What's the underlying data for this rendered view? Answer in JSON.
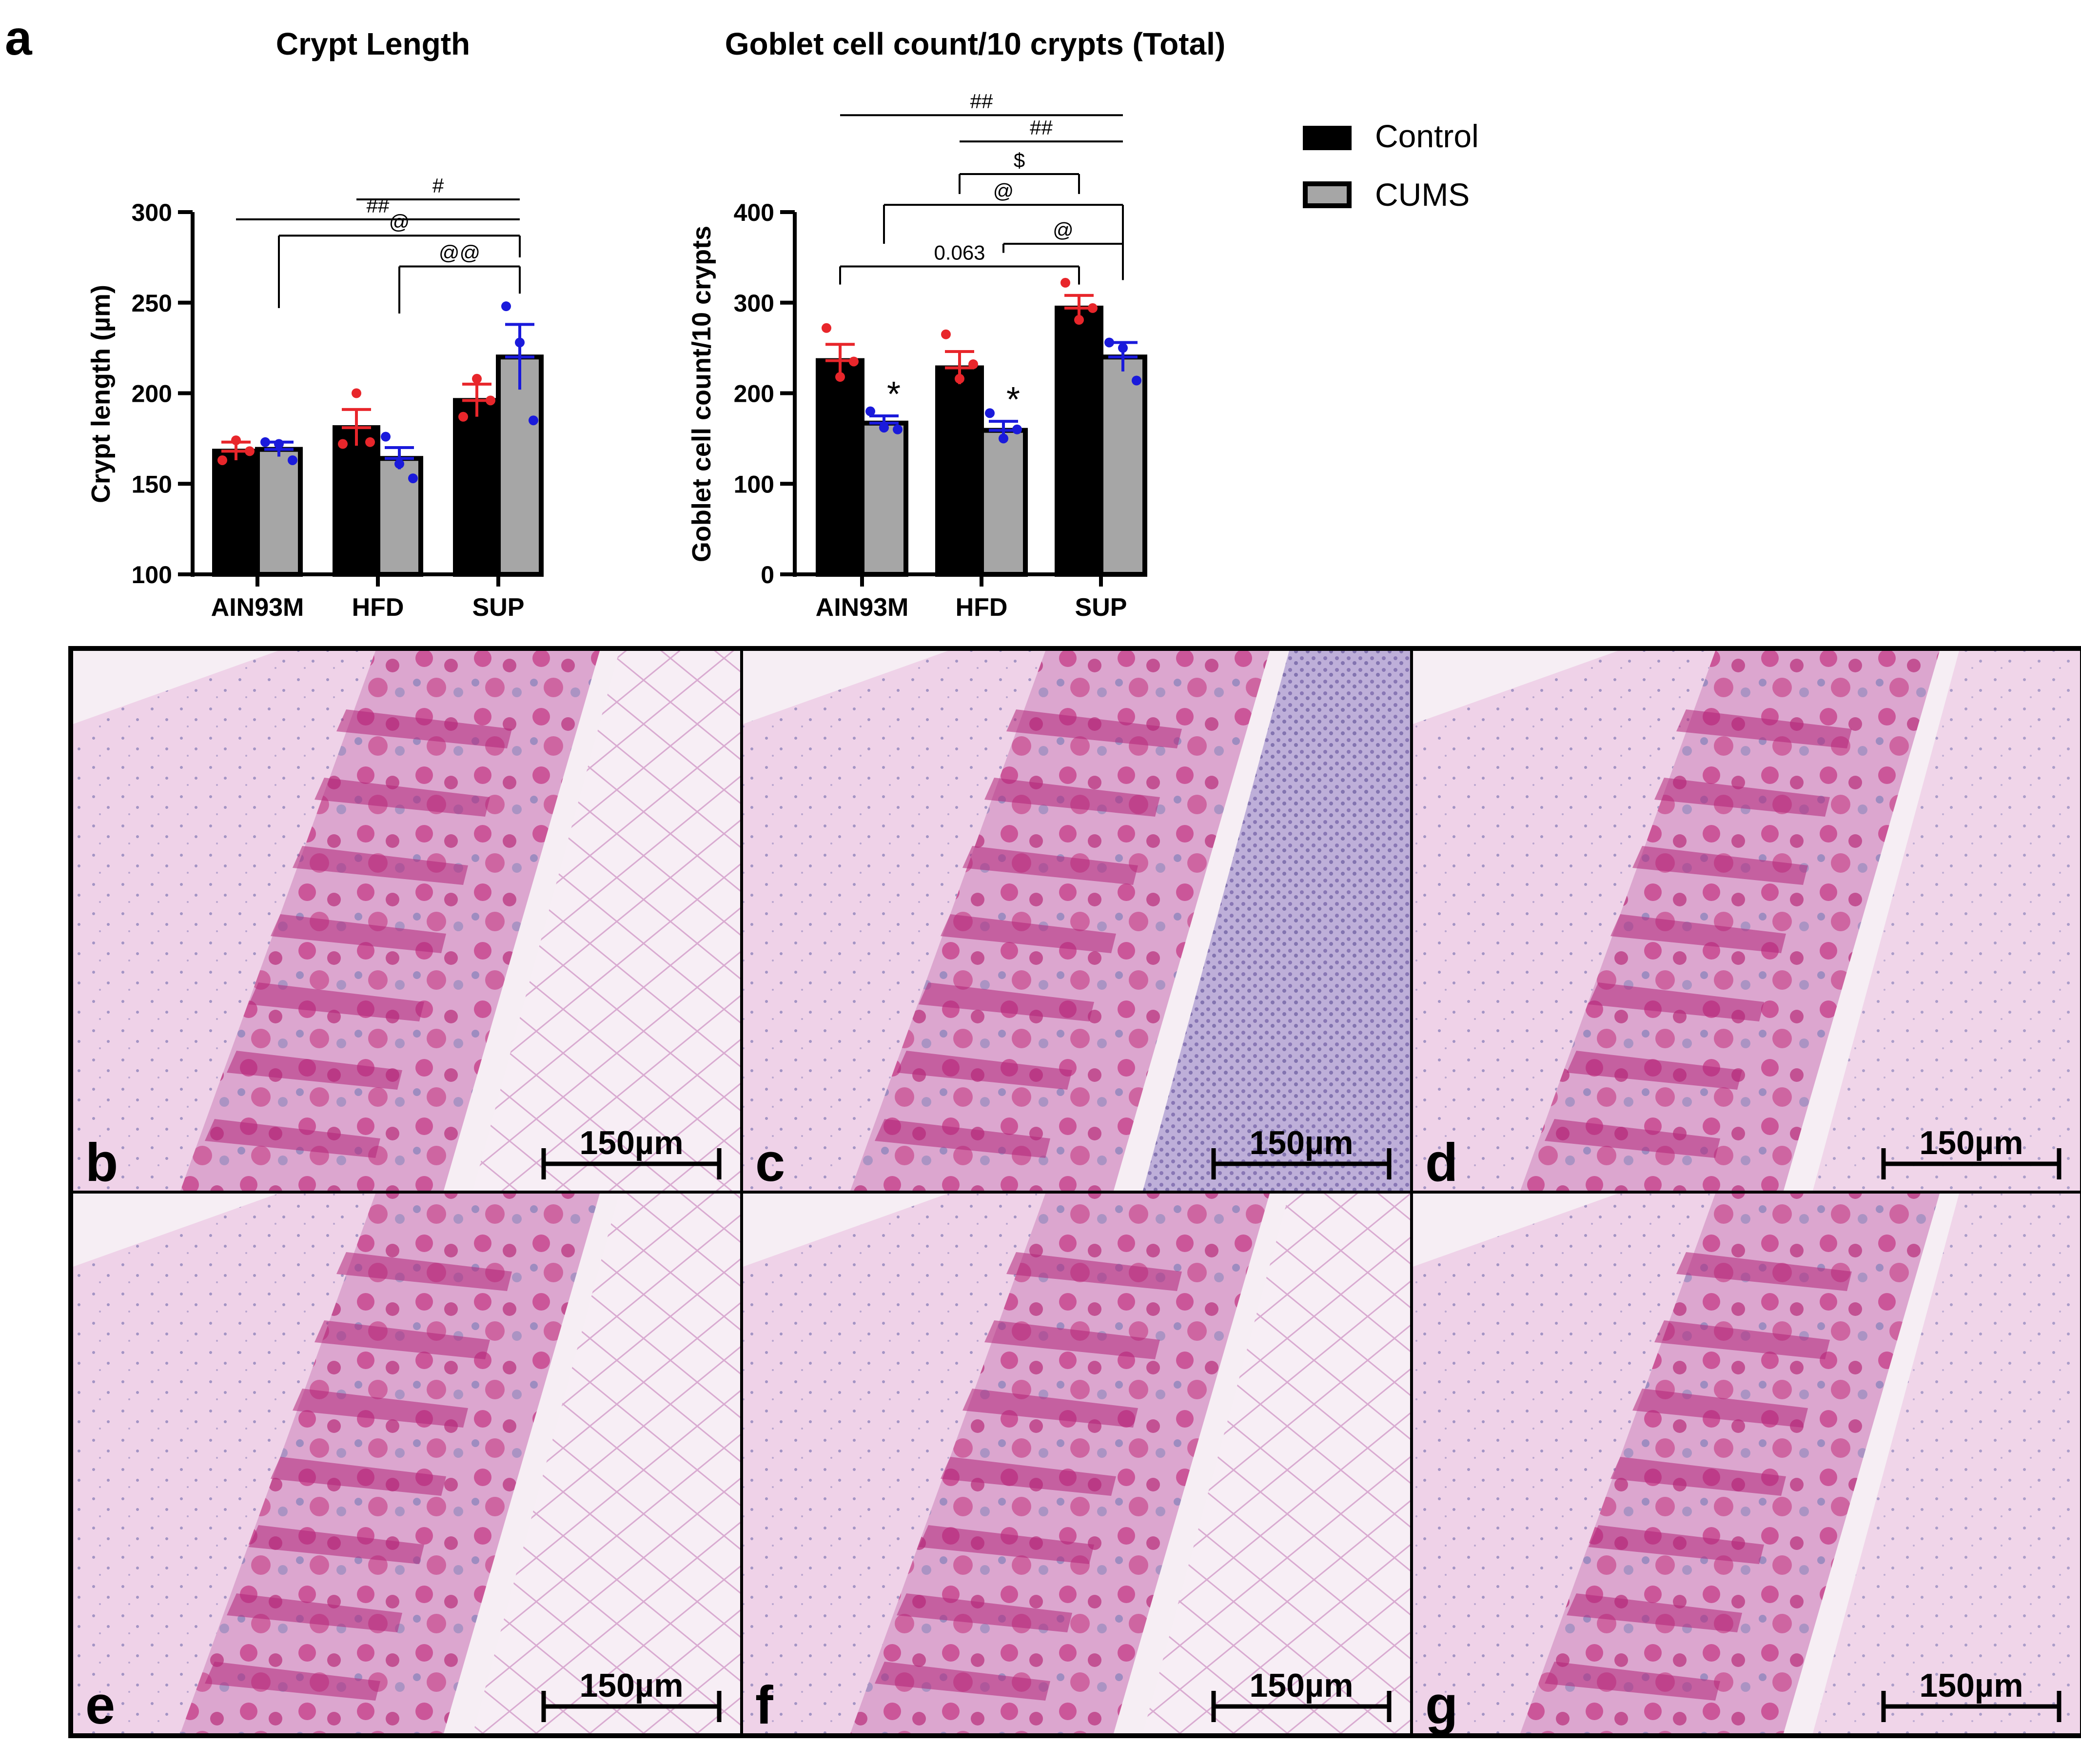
{
  "figure": {
    "panel_label_a": "a",
    "legend": {
      "placement": "top-right",
      "entries": [
        {
          "label": "Control",
          "color": "#000000"
        },
        {
          "label": "CUMS",
          "color": "#a6a6a6"
        }
      ]
    },
    "micrographs": [
      {
        "label": "b",
        "scale_bar": "150µm"
      },
      {
        "label": "c",
        "scale_bar": "150µm"
      },
      {
        "label": "d",
        "scale_bar": "150µm"
      },
      {
        "label": "e",
        "scale_bar": "150µm"
      },
      {
        "label": "f",
        "scale_bar": "150µm"
      },
      {
        "label": "g",
        "scale_bar": "150µm"
      }
    ]
  },
  "chart_data": [
    {
      "type": "bar",
      "title": "Crypt Length",
      "xlabel": "",
      "ylabel": "Crypt length (µm)",
      "categories": [
        "AIN93M",
        "HFD",
        "SUP"
      ],
      "ylim": [
        100,
        300
      ],
      "yticks": [
        100,
        150,
        200,
        250,
        300
      ],
      "grid": false,
      "series": [
        {
          "name": "Control",
          "color": "#000000",
          "values": [
            168,
            181,
            196
          ],
          "sem": [
            5,
            10,
            9
          ],
          "points": [
            [
              163,
              174,
              168
            ],
            [
              172,
              200,
              173
            ],
            [
              187,
              208,
              196
            ]
          ],
          "point_color": "#e8262b"
        },
        {
          "name": "CUMS",
          "color": "#a6a6a6",
          "values": [
            169,
            164,
            220
          ],
          "sem": [
            4,
            6,
            18
          ],
          "points": [
            [
              173,
              172,
              163
            ],
            [
              176,
              161,
              153
            ],
            [
              248,
              228,
              185
            ]
          ],
          "point_color": "#1a1adb"
        }
      ],
      "significance": [
        {
          "label": "#",
          "from": [
            1,
            0
          ],
          "to": [
            2,
            1
          ],
          "y": 307,
          "style": "line"
        },
        {
          "label": "##",
          "from": [
            0,
            0
          ],
          "to": [
            2,
            1
          ],
          "y": 296,
          "style": "line"
        },
        {
          "label": "@",
          "from": [
            0,
            1
          ],
          "to": [
            2,
            1
          ],
          "y": 287,
          "style": "bracket",
          "drop_from": 247,
          "drop_to": 275
        },
        {
          "label": "@@",
          "from": [
            1,
            1
          ],
          "to": [
            2,
            1
          ],
          "y": 270,
          "style": "bracket",
          "drop_from": 244,
          "drop_to": 255
        },
        {
          "label": "*",
          "positions": []
        }
      ]
    },
    {
      "type": "bar",
      "title": "Goblet cell count/10 crypts (Total)",
      "xlabel": "",
      "ylabel": "Goblet cell count/10 crypts",
      "categories": [
        "AIN93M",
        "HFD",
        "SUP"
      ],
      "ylim": [
        0,
        400
      ],
      "yticks": [
        0,
        100,
        200,
        300,
        400
      ],
      "grid": false,
      "series": [
        {
          "name": "Control",
          "color": "#000000",
          "values": [
            236,
            228,
            294
          ],
          "sem": [
            18,
            18,
            14
          ],
          "points": [
            [
              272,
              218,
              235
            ],
            [
              265,
              216,
              232
            ],
            [
              322,
              281,
              294
            ]
          ],
          "point_color": "#e8262b"
        },
        {
          "name": "CUMS",
          "color": "#a6a6a6",
          "values": [
            167,
            159,
            240
          ],
          "sem": [
            8,
            10,
            16
          ],
          "points": [
            [
              180,
              162,
              160
            ],
            [
              178,
              150,
              160
            ],
            [
              256,
              250,
              214
            ]
          ],
          "point_color": "#1a1adb"
        }
      ],
      "significance": [
        {
          "label": "##",
          "from": [
            0,
            0
          ],
          "to": [
            2,
            1
          ],
          "y": 507,
          "style": "line"
        },
        {
          "label": "##",
          "from": [
            1,
            0
          ],
          "to": [
            2,
            1
          ],
          "y": 478,
          "style": "line"
        },
        {
          "label": "$",
          "from": [
            1,
            0
          ],
          "to": [
            2,
            0
          ],
          "y": 442,
          "style": "bracket",
          "drop_from": 420,
          "drop_to": 420
        },
        {
          "label": "@",
          "from": [
            0,
            1
          ],
          "to": [
            2,
            1
          ],
          "y": 408,
          "style": "bracket",
          "drop_from": 365,
          "drop_to": 325
        },
        {
          "label": "@",
          "from": [
            1,
            1
          ],
          "to": [
            2,
            1
          ],
          "y": 365,
          "style": "bracket",
          "drop_from": 355,
          "drop_to": 325
        },
        {
          "label": "0.063",
          "from": [
            0,
            0
          ],
          "to": [
            2,
            0
          ],
          "y": 340,
          "style": "bracket",
          "drop_from": 320,
          "drop_to": 320
        }
      ],
      "stars": [
        {
          "label": "*",
          "category": 0
        },
        {
          "label": "*",
          "category": 1
        }
      ]
    }
  ]
}
